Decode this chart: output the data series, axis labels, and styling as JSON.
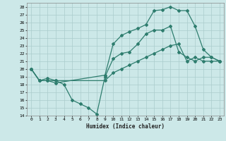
{
  "xlabel": "Humidex (Indice chaleur)",
  "bg_color": "#cce8e8",
  "line_color": "#2e7d6e",
  "grid_color": "#aacccc",
  "xlim": [
    -0.5,
    23.5
  ],
  "ylim": [
    14,
    28.5
  ],
  "xticks": [
    0,
    1,
    2,
    3,
    4,
    5,
    6,
    7,
    8,
    9,
    10,
    11,
    12,
    13,
    14,
    15,
    16,
    17,
    18,
    19,
    20,
    21,
    22,
    23
  ],
  "yticks": [
    14,
    15,
    16,
    17,
    18,
    19,
    20,
    21,
    22,
    23,
    24,
    25,
    26,
    27,
    28
  ],
  "curve_top_x": [
    0,
    1,
    2,
    3,
    9,
    10,
    11,
    12,
    13,
    14,
    15,
    16,
    17,
    18,
    19,
    20,
    21,
    22,
    23
  ],
  "curve_top_y": [
    20,
    18.5,
    18.5,
    18.2,
    19.2,
    23.2,
    24.3,
    24.8,
    25.2,
    25.7,
    27.5,
    27.6,
    28.0,
    27.5,
    27.5,
    25.5,
    22.5,
    21.5,
    21.0
  ],
  "curve_mid_x": [
    0,
    1,
    2,
    3,
    4,
    5,
    6,
    7,
    8,
    9,
    10,
    11,
    12,
    13,
    14,
    15,
    16,
    17,
    18,
    19,
    20,
    21,
    22,
    23
  ],
  "curve_mid_y": [
    20,
    18.5,
    18.5,
    18.5,
    18.0,
    16.0,
    15.5,
    15.0,
    14.2,
    19.0,
    21.3,
    22.0,
    22.2,
    23.2,
    24.5,
    25.0,
    25.0,
    25.5,
    22.2,
    21.5,
    21.0,
    21.5,
    21.5,
    21.0
  ],
  "curve_bot_x": [
    0,
    1,
    2,
    3,
    9,
    10,
    11,
    12,
    13,
    14,
    15,
    16,
    17,
    18,
    19,
    20,
    21,
    22,
    23
  ],
  "curve_bot_y": [
    20,
    18.5,
    18.8,
    18.5,
    18.5,
    19.5,
    20.0,
    20.5,
    21.0,
    21.5,
    22.0,
    22.5,
    23.0,
    23.2,
    21.0,
    21.5,
    21.0,
    21.0,
    21.0
  ]
}
